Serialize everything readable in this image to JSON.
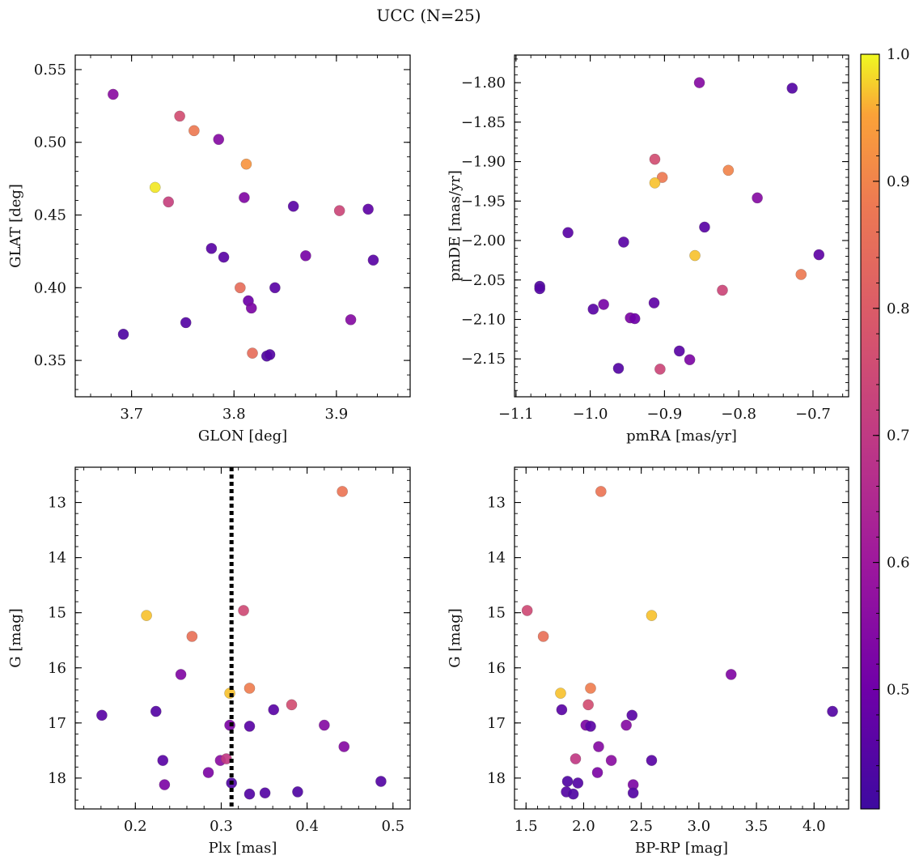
{
  "figure": {
    "title": "UCC (N=25)"
  },
  "colormap": {
    "name": "plasma",
    "range": [
      0.406,
      1.0
    ],
    "ticks": [
      0.5,
      0.6,
      0.7,
      0.8,
      0.9,
      1.0
    ],
    "tick_labels": [
      "0.5",
      "0.6",
      "0.7",
      "0.8",
      "0.9",
      "1.0"
    ]
  },
  "chart_data": [
    {
      "type": "scatter",
      "xlabel": "GLON [deg]",
      "ylabel": "GLAT [deg]",
      "xlim": [
        3.645,
        3.972
      ],
      "ylim": [
        0.325,
        0.56
      ],
      "xticks": [
        3.7,
        3.8,
        3.9
      ],
      "xtick_labels": [
        "3.7",
        "3.8",
        "3.9"
      ],
      "yticks": [
        0.35,
        0.4,
        0.45,
        0.5,
        0.55
      ],
      "ytick_labels": [
        "0.35",
        "0.40",
        "0.45",
        "0.50",
        "0.55"
      ],
      "yinvert": false,
      "vline": null,
      "points": [
        {
          "x": 3.682,
          "y": 0.533,
          "c": 0.56
        },
        {
          "x": 3.747,
          "y": 0.518,
          "c": 0.76
        },
        {
          "x": 3.761,
          "y": 0.508,
          "c": 0.88
        },
        {
          "x": 3.785,
          "y": 0.502,
          "c": 0.55
        },
        {
          "x": 3.812,
          "y": 0.485,
          "c": 0.93
        },
        {
          "x": 3.723,
          "y": 0.469,
          "c": 0.99
        },
        {
          "x": 3.736,
          "y": 0.459,
          "c": 0.72
        },
        {
          "x": 3.81,
          "y": 0.462,
          "c": 0.54
        },
        {
          "x": 3.858,
          "y": 0.456,
          "c": 0.46
        },
        {
          "x": 3.903,
          "y": 0.453,
          "c": 0.74
        },
        {
          "x": 3.931,
          "y": 0.454,
          "c": 0.47
        },
        {
          "x": 3.778,
          "y": 0.427,
          "c": 0.46
        },
        {
          "x": 3.79,
          "y": 0.421,
          "c": 0.46
        },
        {
          "x": 3.87,
          "y": 0.422,
          "c": 0.52
        },
        {
          "x": 3.936,
          "y": 0.419,
          "c": 0.46
        },
        {
          "x": 3.806,
          "y": 0.4,
          "c": 0.85
        },
        {
          "x": 3.84,
          "y": 0.4,
          "c": 0.46
        },
        {
          "x": 3.814,
          "y": 0.391,
          "c": 0.5
        },
        {
          "x": 3.817,
          "y": 0.386,
          "c": 0.53
        },
        {
          "x": 3.914,
          "y": 0.378,
          "c": 0.55
        },
        {
          "x": 3.692,
          "y": 0.368,
          "c": 0.44
        },
        {
          "x": 3.753,
          "y": 0.376,
          "c": 0.45
        },
        {
          "x": 3.818,
          "y": 0.355,
          "c": 0.85
        },
        {
          "x": 3.832,
          "y": 0.353,
          "c": 0.44
        },
        {
          "x": 3.835,
          "y": 0.354,
          "c": 0.45
        }
      ]
    },
    {
      "type": "scatter",
      "xlabel": "pmRA [mas/yr]",
      "ylabel": "pmDE [mas/yr]",
      "xlim": [
        -1.102,
        -0.652
      ],
      "ylim": [
        -2.198,
        -1.765
      ],
      "xticks": [
        -1.1,
        -1.0,
        -0.9,
        -0.8,
        -0.7
      ],
      "xtick_labels": [
        "−1.1",
        "−1.0",
        "−0.9",
        "−0.8",
        "−0.7"
      ],
      "yticks": [
        -2.15,
        -2.1,
        -2.05,
        -2.0,
        -1.95,
        -1.9,
        -1.85,
        -1.8
      ],
      "ytick_labels": [
        "−2.15",
        "−2.10",
        "−2.05",
        "−2.00",
        "−1.95",
        "−1.90",
        "−1.85",
        "−1.80"
      ],
      "yinvert": false,
      "vline": null,
      "points": [
        {
          "x": -0.853,
          "y": -1.8,
          "c": 0.55
        },
        {
          "x": -0.728,
          "y": -1.807,
          "c": 0.45
        },
        {
          "x": -0.913,
          "y": -1.897,
          "c": 0.76
        },
        {
          "x": -0.903,
          "y": -1.92,
          "c": 0.88
        },
        {
          "x": -0.913,
          "y": -1.927,
          "c": 0.97
        },
        {
          "x": -0.814,
          "y": -1.911,
          "c": 0.9
        },
        {
          "x": -0.775,
          "y": -1.946,
          "c": 0.55
        },
        {
          "x": -1.03,
          "y": -1.99,
          "c": 0.46
        },
        {
          "x": -0.955,
          "y": -2.002,
          "c": 0.46
        },
        {
          "x": -0.846,
          "y": -1.983,
          "c": 0.46
        },
        {
          "x": -0.859,
          "y": -2.019,
          "c": 0.97
        },
        {
          "x": -0.692,
          "y": -2.018,
          "c": 0.47
        },
        {
          "x": -0.716,
          "y": -2.043,
          "c": 0.88
        },
        {
          "x": -1.068,
          "y": -2.058,
          "c": 0.44
        },
        {
          "x": -1.068,
          "y": -2.061,
          "c": 0.45
        },
        {
          "x": -0.996,
          "y": -2.087,
          "c": 0.46
        },
        {
          "x": -0.982,
          "y": -2.081,
          "c": 0.52
        },
        {
          "x": -0.914,
          "y": -2.079,
          "c": 0.47
        },
        {
          "x": -0.822,
          "y": -2.063,
          "c": 0.74
        },
        {
          "x": -0.946,
          "y": -2.098,
          "c": 0.53
        },
        {
          "x": -0.94,
          "y": -2.099,
          "c": 0.5
        },
        {
          "x": -0.88,
          "y": -2.14,
          "c": 0.46
        },
        {
          "x": -0.866,
          "y": -2.151,
          "c": 0.53
        },
        {
          "x": -0.962,
          "y": -2.162,
          "c": 0.45
        },
        {
          "x": -0.906,
          "y": -2.163,
          "c": 0.74
        }
      ]
    },
    {
      "type": "scatter",
      "xlabel": "Plx [mas]",
      "ylabel": "G [mag]",
      "xlim": [
        0.13,
        0.52
      ],
      "ylim": [
        12.36,
        18.56
      ],
      "xticks": [
        0.2,
        0.3,
        0.4,
        0.5
      ],
      "xtick_labels": [
        "0.2",
        "0.3",
        "0.4",
        "0.5"
      ],
      "yticks": [
        13,
        14,
        15,
        16,
        17,
        18
      ],
      "ytick_labels": [
        "13",
        "14",
        "15",
        "16",
        "17",
        "18"
      ],
      "yinvert": true,
      "vline": 0.312,
      "points": [
        {
          "x": 0.441,
          "y": 12.8,
          "c": 0.87
        },
        {
          "x": 0.326,
          "y": 14.96,
          "c": 0.75
        },
        {
          "x": 0.213,
          "y": 15.05,
          "c": 0.97
        },
        {
          "x": 0.266,
          "y": 15.43,
          "c": 0.86
        },
        {
          "x": 0.253,
          "y": 16.12,
          "c": 0.54
        },
        {
          "x": 0.31,
          "y": 16.46,
          "c": 0.97
        },
        {
          "x": 0.333,
          "y": 16.37,
          "c": 0.89
        },
        {
          "x": 0.382,
          "y": 16.67,
          "c": 0.76
        },
        {
          "x": 0.361,
          "y": 16.76,
          "c": 0.46
        },
        {
          "x": 0.161,
          "y": 16.86,
          "c": 0.46
        },
        {
          "x": 0.224,
          "y": 16.79,
          "c": 0.45
        },
        {
          "x": 0.31,
          "y": 17.04,
          "c": 0.53
        },
        {
          "x": 0.333,
          "y": 17.06,
          "c": 0.46
        },
        {
          "x": 0.42,
          "y": 17.04,
          "c": 0.55
        },
        {
          "x": 0.443,
          "y": 17.43,
          "c": 0.55
        },
        {
          "x": 0.232,
          "y": 17.68,
          "c": 0.46
        },
        {
          "x": 0.299,
          "y": 17.68,
          "c": 0.56
        },
        {
          "x": 0.306,
          "y": 17.65,
          "c": 0.7
        },
        {
          "x": 0.285,
          "y": 17.9,
          "c": 0.53
        },
        {
          "x": 0.234,
          "y": 18.12,
          "c": 0.53
        },
        {
          "x": 0.312,
          "y": 18.09,
          "c": 0.44
        },
        {
          "x": 0.333,
          "y": 18.29,
          "c": 0.45
        },
        {
          "x": 0.351,
          "y": 18.27,
          "c": 0.45
        },
        {
          "x": 0.389,
          "y": 18.25,
          "c": 0.44
        },
        {
          "x": 0.486,
          "y": 18.06,
          "c": 0.45
        }
      ]
    },
    {
      "type": "scatter",
      "xlabel": "BP-RP [mag]",
      "ylabel": "G [mag]",
      "xlim": [
        1.4,
        4.3
      ],
      "ylim": [
        12.36,
        18.56
      ],
      "xticks": [
        1.5,
        2.0,
        2.5,
        3.0,
        3.5,
        4.0
      ],
      "xtick_labels": [
        "1.5",
        "2.0",
        "2.5",
        "3.0",
        "3.5",
        "4.0"
      ],
      "yticks": [
        13,
        14,
        15,
        16,
        17,
        18
      ],
      "ytick_labels": [
        "13",
        "14",
        "15",
        "16",
        "17",
        "18"
      ],
      "yinvert": true,
      "vline": null,
      "points": [
        {
          "x": 2.15,
          "y": 12.8,
          "c": 0.87
        },
        {
          "x": 1.51,
          "y": 14.96,
          "c": 0.75
        },
        {
          "x": 2.59,
          "y": 15.05,
          "c": 0.97
        },
        {
          "x": 1.65,
          "y": 15.43,
          "c": 0.86
        },
        {
          "x": 3.28,
          "y": 16.12,
          "c": 0.54
        },
        {
          "x": 1.8,
          "y": 16.46,
          "c": 0.97
        },
        {
          "x": 2.06,
          "y": 16.37,
          "c": 0.89
        },
        {
          "x": 2.04,
          "y": 16.67,
          "c": 0.76
        },
        {
          "x": 1.81,
          "y": 16.76,
          "c": 0.46
        },
        {
          "x": 2.42,
          "y": 16.86,
          "c": 0.46
        },
        {
          "x": 4.16,
          "y": 16.79,
          "c": 0.45
        },
        {
          "x": 2.02,
          "y": 17.04,
          "c": 0.53
        },
        {
          "x": 2.06,
          "y": 17.06,
          "c": 0.46
        },
        {
          "x": 2.37,
          "y": 17.04,
          "c": 0.55
        },
        {
          "x": 2.13,
          "y": 17.43,
          "c": 0.55
        },
        {
          "x": 2.59,
          "y": 17.68,
          "c": 0.46
        },
        {
          "x": 2.24,
          "y": 17.68,
          "c": 0.56
        },
        {
          "x": 1.93,
          "y": 17.65,
          "c": 0.7
        },
        {
          "x": 2.12,
          "y": 17.9,
          "c": 0.53
        },
        {
          "x": 2.43,
          "y": 18.12,
          "c": 0.53
        },
        {
          "x": 1.86,
          "y": 18.06,
          "c": 0.44
        },
        {
          "x": 1.95,
          "y": 18.09,
          "c": 0.45
        },
        {
          "x": 1.85,
          "y": 18.25,
          "c": 0.45
        },
        {
          "x": 1.91,
          "y": 18.29,
          "c": 0.44
        },
        {
          "x": 2.43,
          "y": 18.27,
          "c": 0.45
        }
      ]
    }
  ]
}
